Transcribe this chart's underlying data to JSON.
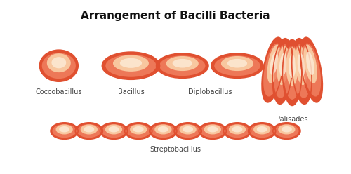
{
  "title": "Arrangement of Bacilli Bacteria",
  "title_fontsize": 11,
  "title_fontweight": "bold",
  "background_color": "#ffffff",
  "outer_color": "#e05030",
  "mid_color": "#f08060",
  "inner_color": "#fad0a8",
  "highlight_color": "#fdecd8",
  "labels": {
    "coccobacillus": "Coccobacillus",
    "bacillus": "Bacillus",
    "diplobacillus": "Diplobacillus",
    "palisades": "Palisades",
    "streptobacillus": "Streptobacillus"
  },
  "label_fontsize": 7,
  "label_color": "#444444",
  "figsize": [
    5.0,
    2.48
  ],
  "dpi": 100
}
